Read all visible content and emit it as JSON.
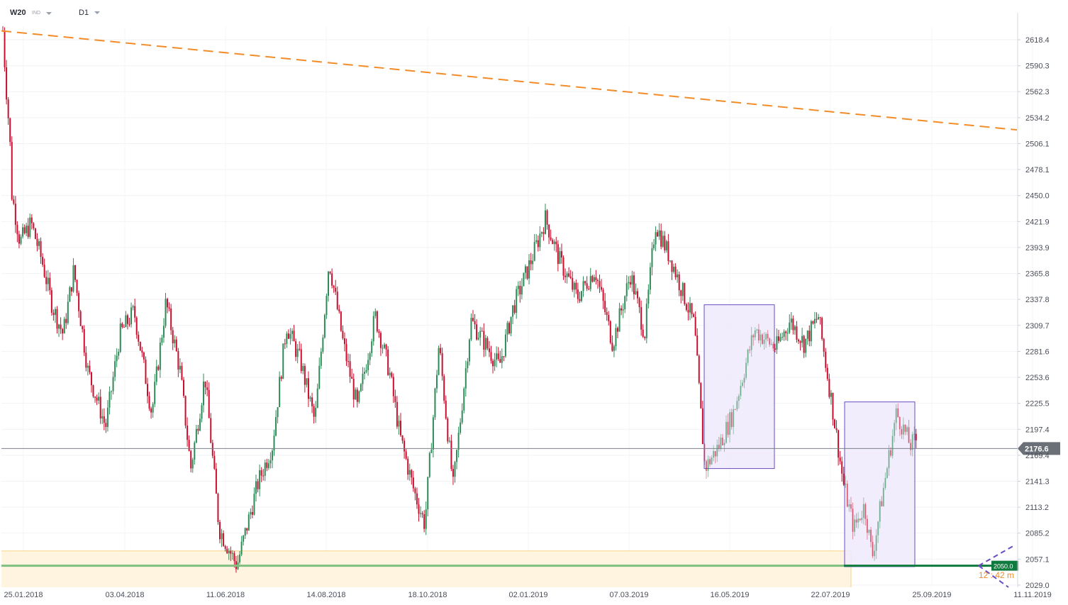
{
  "header": {
    "symbol": "W20",
    "symbol_type": "IND",
    "timeframe": "D1"
  },
  "chart_data": {
    "type": "candlestick",
    "y_ticks": [
      "2618.4",
      "2590.3",
      "2562.3",
      "2534.2",
      "2506.1",
      "2478.1",
      "2450.0",
      "2421.9",
      "2393.9",
      "2365.8",
      "2337.8",
      "2309.7",
      "2281.6",
      "2253.6",
      "2225.5",
      "2197.4",
      "2169.4",
      "2141.3",
      "2113.2",
      "2085.2",
      "2057.1",
      "2029.0"
    ],
    "x_ticks": [
      "25.01.2018",
      "03.04.2018",
      "11.06.2018",
      "14.08.2018",
      "18.10.2018",
      "02.01.2019",
      "07.03.2019",
      "16.05.2019",
      "22.07.2019",
      "25.09.2019",
      "11.11.2019"
    ],
    "ylim": [
      2022.0,
      2635.0
    ],
    "current_price": {
      "value": 2176.6,
      "label": "2176.6"
    },
    "support_level": {
      "value": 2050.0,
      "label": "2050.0"
    },
    "support_zone": [
      2041.0,
      2066.0
    ],
    "countdown_label": "12 : 42 m",
    "trendline": {
      "start_price": 2628.0,
      "end_price": 2521.0
    },
    "rectangles": [
      {
        "name": "box-1",
        "top": 2332.0,
        "bottom": 2155.0
      },
      {
        "name": "box-2",
        "top": 2227.0,
        "bottom": 2049.0
      }
    ],
    "colors": {
      "up": "#2e8b57",
      "down": "#c8102e",
      "trendline": "#f28c28",
      "support": "#7fbf7f",
      "box_border": "#6a4cc2",
      "box_fill": "#efeafb",
      "zone": "#fff4e0"
    },
    "segments": [
      [
        0,
        2628
      ],
      [
        4,
        2575
      ],
      [
        10,
        2510
      ],
      [
        12,
        2455
      ],
      [
        24,
        2400
      ],
      [
        40,
        2420
      ],
      [
        55,
        2380
      ],
      [
        70,
        2330
      ],
      [
        85,
        2300
      ],
      [
        100,
        2370
      ],
      [
        120,
        2260
      ],
      [
        145,
        2200
      ],
      [
        165,
        2300
      ],
      [
        185,
        2325
      ],
      [
        210,
        2215
      ],
      [
        230,
        2335
      ],
      [
        250,
        2260
      ],
      [
        265,
        2155
      ],
      [
        285,
        2255
      ],
      [
        305,
        2090
      ],
      [
        330,
        2050
      ],
      [
        360,
        2140
      ],
      [
        380,
        2180
      ],
      [
        400,
        2310
      ],
      [
        420,
        2270
      ],
      [
        440,
        2205
      ],
      [
        460,
        2380
      ],
      [
        480,
        2290
      ],
      [
        500,
        2220
      ],
      [
        525,
        2320
      ],
      [
        545,
        2260
      ],
      [
        560,
        2190
      ],
      [
        580,
        2130
      ],
      [
        595,
        2095
      ],
      [
        615,
        2290
      ],
      [
        635,
        2135
      ],
      [
        660,
        2315
      ],
      [
        680,
        2290
      ],
      [
        700,
        2265
      ],
      [
        720,
        2330
      ],
      [
        745,
        2380
      ],
      [
        765,
        2425
      ],
      [
        785,
        2380
      ],
      [
        810,
        2340
      ],
      [
        835,
        2370
      ],
      [
        860,
        2290
      ],
      [
        885,
        2365
      ],
      [
        905,
        2300
      ],
      [
        920,
        2420
      ],
      [
        945,
        2375
      ],
      [
        975,
        2310
      ],
      [
        990,
        2155
      ],
      [
        1010,
        2180
      ],
      [
        1030,
        2215
      ],
      [
        1060,
        2305
      ],
      [
        1090,
        2285
      ],
      [
        1110,
        2315
      ],
      [
        1130,
        2290
      ],
      [
        1150,
        2320
      ],
      [
        1170,
        2220
      ],
      [
        1185,
        2140
      ],
      [
        1200,
        2090
      ],
      [
        1215,
        2115
      ],
      [
        1226,
        2060
      ],
      [
        1240,
        2125
      ],
      [
        1260,
        2215
      ],
      [
        1280,
        2180
      ],
      [
        1292,
        2190
      ],
      [
        1294,
        2176
      ]
    ]
  }
}
